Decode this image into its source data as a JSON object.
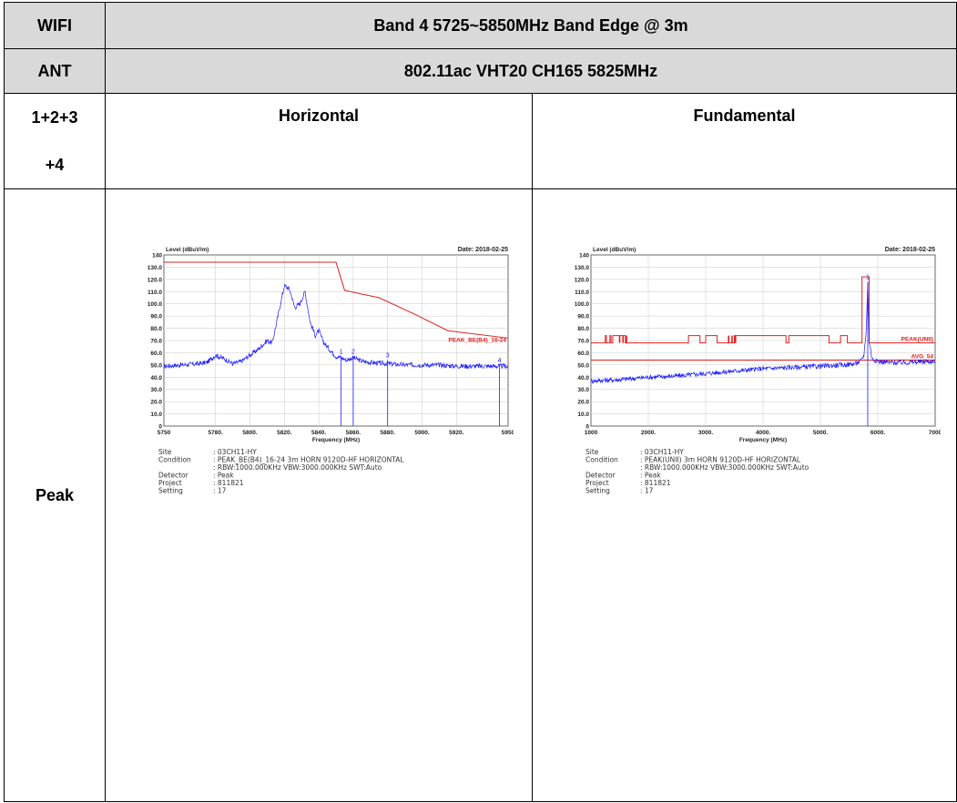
{
  "table": {
    "row1": {
      "label": "WIFI",
      "value": "Band 4 5725~5850MHz Band Edge @ 3m"
    },
    "row2": {
      "label": "ANT",
      "value": "802.11ac VHT20 CH165 5825MHz"
    },
    "row3": {
      "label_line1": "1+2+3",
      "label_line2": "+4",
      "col1": "Horizontal",
      "col2": "Fundamental"
    },
    "row4": {
      "label": "Peak"
    }
  },
  "colors": {
    "header_bg": "#d9d9d9",
    "trace": "#1a1aff",
    "limit": "#e02020"
  },
  "chart_data": [
    {
      "type": "line",
      "name": "band-edge-horizontal",
      "ylabel": "Level (dBuV/m)",
      "date": "Date: 2018-02-25",
      "xlabel": "Frequency (MHz)",
      "xlim": [
        5750,
        5950
      ],
      "ylim": [
        0,
        140
      ],
      "yticks": [
        "0",
        "10.0",
        "20.0",
        "30.0",
        "40.0",
        "50.0",
        "60.0",
        "70.0",
        "80.0",
        "90.0",
        "100.0",
        "110.0",
        "120.0",
        "130.0",
        "140"
      ],
      "xticks": [
        "5750",
        "5780.",
        "5800.",
        "5820.",
        "5840.",
        "5860.",
        "5880.",
        "5900.",
        "5920.",
        "5950"
      ],
      "xtick_values": [
        5750,
        5780,
        5800,
        5820,
        5840,
        5860,
        5880,
        5900,
        5920,
        5950
      ],
      "limit_label": "PEAK_BE(B4)_16-24",
      "limit": {
        "x": [
          5750,
          5850,
          5855,
          5875,
          5895,
          5915,
          5950
        ],
        "y": [
          134,
          134,
          111,
          105,
          92,
          78,
          72
        ]
      },
      "trace": {
        "x": [
          5750,
          5760,
          5770,
          5775,
          5780,
          5785,
          5790,
          5795,
          5800,
          5805,
          5810,
          5813,
          5817,
          5820,
          5823,
          5826,
          5829,
          5832,
          5835,
          5838,
          5840,
          5843,
          5846,
          5850,
          5853,
          5856,
          5860,
          5865,
          5870,
          5880,
          5890,
          5900,
          5910,
          5920,
          5930,
          5940,
          5950
        ],
        "y": [
          49,
          50,
          51,
          52,
          58,
          55,
          51,
          53,
          58,
          63,
          70,
          68,
          95,
          115,
          112,
          97,
          100,
          110,
          85,
          74,
          78,
          68,
          63,
          57,
          56,
          54,
          56,
          53,
          52,
          51,
          50,
          50,
          50,
          49,
          49,
          49,
          49
        ]
      },
      "markers": [
        {
          "label": "1",
          "x": 5853,
          "y": 57
        },
        {
          "label": "2",
          "x": 5860,
          "y": 57
        },
        {
          "label": "3",
          "x": 5880,
          "y": 54
        },
        {
          "label": "4",
          "x": 5945,
          "y": 50
        }
      ],
      "info": [
        {
          "k": "Site",
          "v": ": 03CH11-HY"
        },
        {
          "k": "Condition",
          "v": ": PEAK_BE(B4)_16-24 3m HORN 9120D-HF HORIZONTAL"
        },
        {
          "k": "",
          "v": ": RBW:1000.000KHz VBW:3000.000KHz SWT:Auto"
        },
        {
          "k": "Detector",
          "v": ": Peak"
        },
        {
          "k": "Project",
          "v": ": 811821"
        },
        {
          "k": "Setting",
          "v": ": 17"
        }
      ]
    },
    {
      "type": "line",
      "name": "fundamental",
      "ylabel": "Level (dBuV/m)",
      "date": "Date: 2018-02-25",
      "xlabel": "Frequency (MHz)",
      "xlim": [
        1000,
        7000
      ],
      "ylim": [
        0,
        140
      ],
      "yticks": [
        "0",
        "10.0",
        "20.0",
        "30.0",
        "40.0",
        "50.0",
        "60.0",
        "70.0",
        "80.0",
        "90.0",
        "100.0",
        "110.0",
        "120.0",
        "130.0",
        "140"
      ],
      "xticks": [
        "1000",
        "2000.",
        "3000.",
        "4000.",
        "5000.",
        "6000.",
        "7000"
      ],
      "xtick_values": [
        1000,
        2000,
        3000,
        4000,
        5000,
        6000,
        7000
      ],
      "limit_label": "PEAK(UNII)",
      "limit2_label": "AVG_54",
      "avg_limit": 54,
      "limit": {
        "segments": [
          [
            1000,
            1250,
            68
          ],
          [
            1250,
            1270,
            74
          ],
          [
            1270,
            1330,
            68
          ],
          [
            1330,
            1350,
            74
          ],
          [
            1350,
            1380,
            68
          ],
          [
            1380,
            1600,
            74
          ],
          [
            1600,
            2700,
            68
          ],
          [
            2700,
            2900,
            74
          ],
          [
            2900,
            3000,
            68
          ],
          [
            3000,
            3200,
            74
          ],
          [
            3200,
            3500,
            68
          ],
          [
            3500,
            4400,
            74
          ],
          [
            4400,
            4450,
            68
          ],
          [
            4450,
            5150,
            74
          ],
          [
            5150,
            5350,
            68
          ],
          [
            5350,
            5470,
            74
          ],
          [
            5470,
            5725,
            68
          ],
          [
            5725,
            5850,
            122
          ],
          [
            5850,
            7000,
            68
          ]
        ],
        "spikes": [
          1500,
          1560,
          1620,
          3400,
          3460,
          3520
        ]
      },
      "trace": {
        "x": [
          1000,
          1500,
          2000,
          2500,
          3000,
          3500,
          4000,
          4500,
          5000,
          5400,
          5600,
          5700,
          5760,
          5800,
          5825,
          5850,
          5900,
          6000,
          6200,
          6500,
          7000
        ],
        "y": [
          37,
          38,
          40,
          41,
          43,
          45,
          47,
          48,
          49,
          50,
          51,
          53,
          58,
          80,
          118,
          70,
          55,
          53,
          52,
          52,
          53
        ]
      },
      "markers": [
        {
          "label": "1",
          "x": 5825,
          "y": 118
        }
      ],
      "info": [
        {
          "k": "Site",
          "v": ": 03CH11-HY"
        },
        {
          "k": "Condition",
          "v": ": PEAK(UNII) 3m HORN 9120D-HF HORIZONTAL"
        },
        {
          "k": "",
          "v": ": RBW:1000.000KHz VBW:3000.000KHz SWT:Auto"
        },
        {
          "k": "Detector",
          "v": ": Peak"
        },
        {
          "k": "Project",
          "v": ": 811821"
        },
        {
          "k": "Setting",
          "v": ": 17"
        }
      ]
    }
  ]
}
